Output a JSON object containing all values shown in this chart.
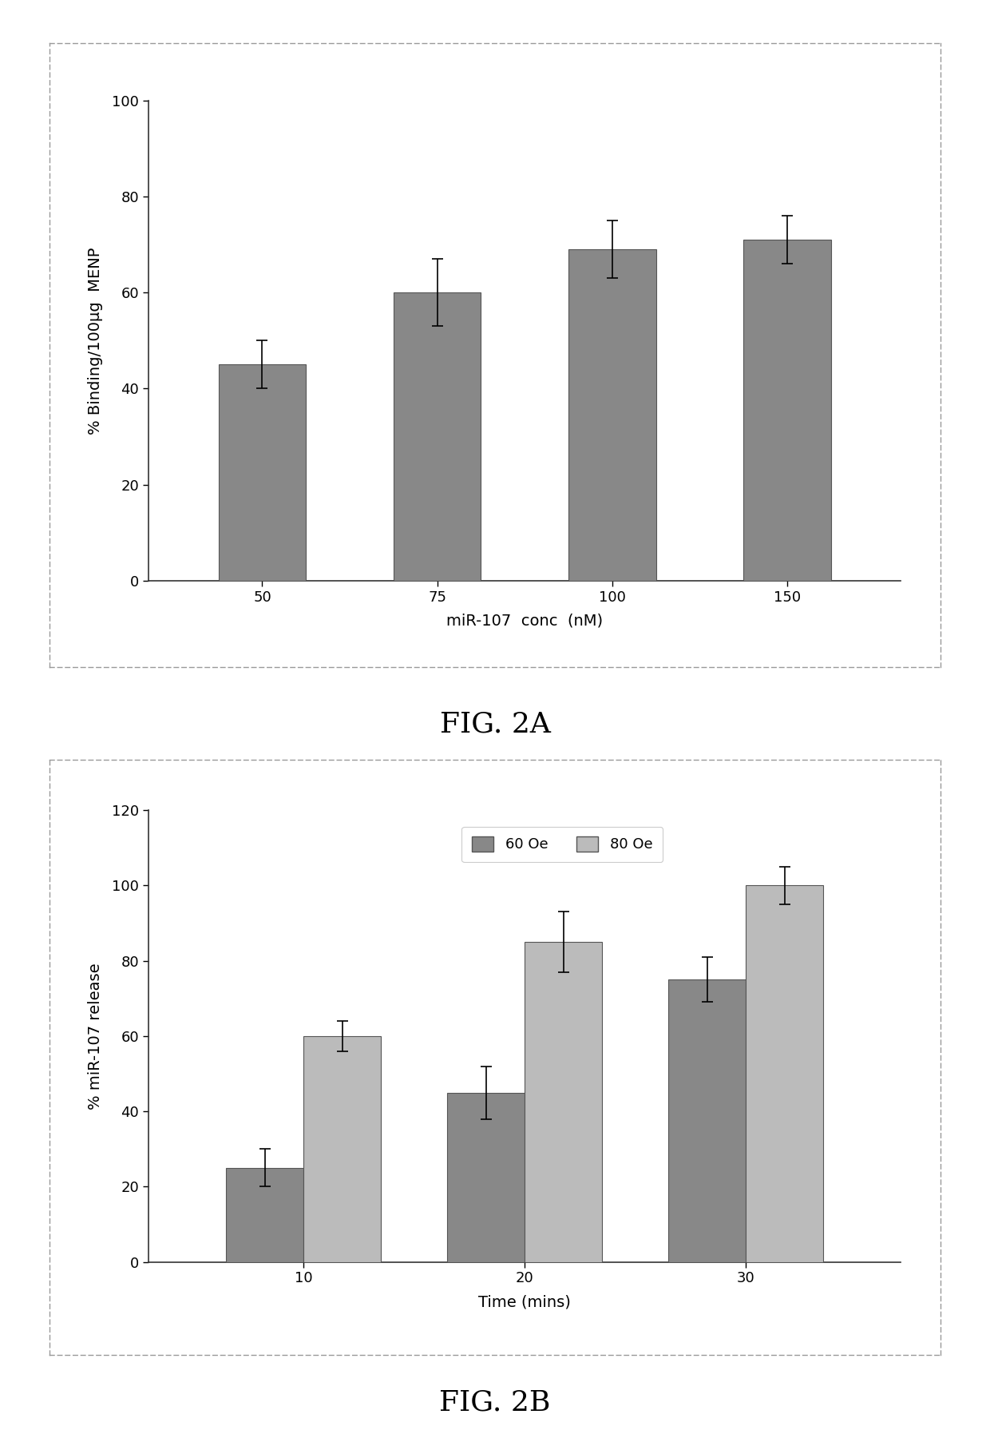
{
  "fig2a": {
    "categories": [
      "50",
      "75",
      "100",
      "150"
    ],
    "values": [
      45,
      60,
      69,
      71
    ],
    "errors": [
      5,
      7,
      6,
      5
    ],
    "bar_color": "#888888",
    "xlabel": "miR-107  conc  (nM)",
    "ylabel": "% Binding/100μg  MENP",
    "ylim": [
      0,
      100
    ],
    "yticks": [
      0,
      20,
      40,
      60,
      80,
      100
    ],
    "caption": "FIG. 2A",
    "bar_width": 0.5
  },
  "fig2b": {
    "categories": [
      "10",
      "20",
      "30"
    ],
    "values_60": [
      25,
      45,
      75
    ],
    "values_80": [
      60,
      85,
      100
    ],
    "errors_60": [
      5,
      7,
      6
    ],
    "errors_80": [
      4,
      8,
      5
    ],
    "bar_color_60": "#888888",
    "bar_color_80": "#bbbbbb",
    "xlabel": "Time (mins)",
    "ylabel": "% miR-107 release",
    "ylim": [
      0,
      120
    ],
    "yticks": [
      0,
      20,
      40,
      60,
      80,
      100,
      120
    ],
    "caption": "FIG. 2B",
    "legend_60": "60 Oe",
    "legend_80": "80 Oe",
    "bar_width": 0.35
  },
  "background_color": "#ffffff",
  "panel_bg": "#ffffff",
  "font_size_label": 14,
  "font_size_tick": 13,
  "font_size_caption": 26,
  "font_size_legend": 13
}
